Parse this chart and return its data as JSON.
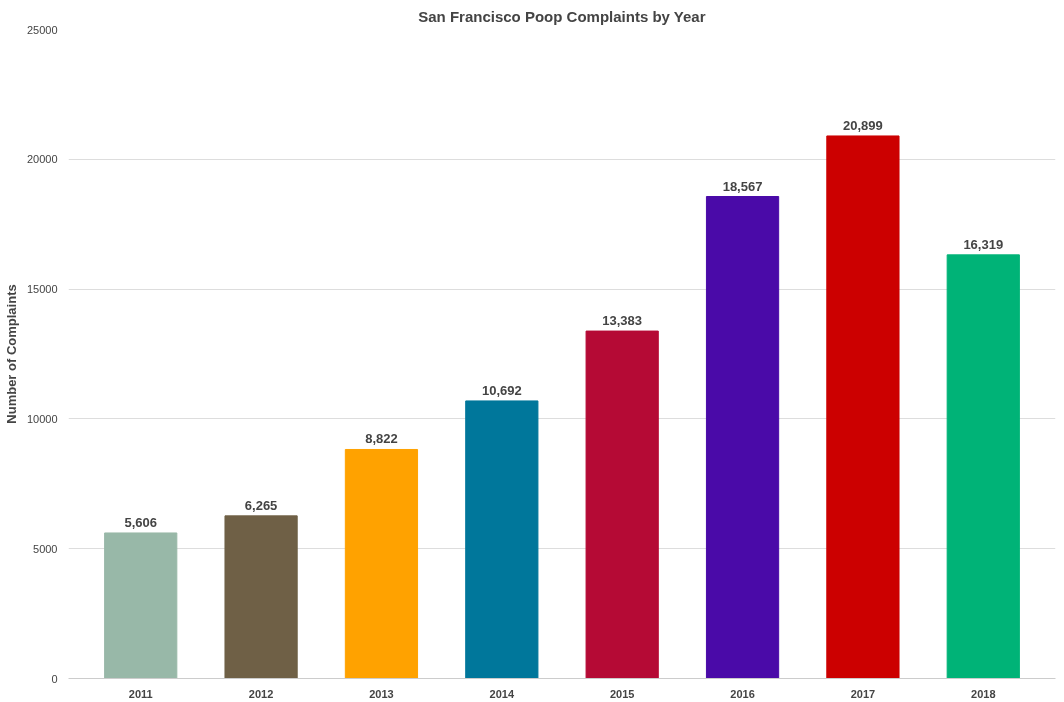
{
  "chart_data": {
    "type": "bar",
    "title": "San Francisco Poop Complaints by Year",
    "ylabel": "Number of Complaints",
    "categories": [
      "2011",
      "2012",
      "2013",
      "2014",
      "2015",
      "2016",
      "2017",
      "2018"
    ],
    "values": [
      5606,
      6265,
      8822,
      10692,
      13383,
      18567,
      20899,
      16319
    ],
    "colors": [
      "#98b8a8",
      "#6f6046",
      "#ffa200",
      "#00779b",
      "#b50a35",
      "#4a0aa8",
      "#cc0000",
      "#00b377"
    ],
    "value_labels": [
      "5,606",
      "6,265",
      "8,822",
      "10,692",
      "13,383",
      "18,567",
      "20,899",
      "16,319"
    ],
    "ylim": [
      0,
      25000
    ],
    "yticks": [
      0,
      5000,
      10000,
      15000,
      20000,
      25000
    ],
    "grid": "y"
  }
}
